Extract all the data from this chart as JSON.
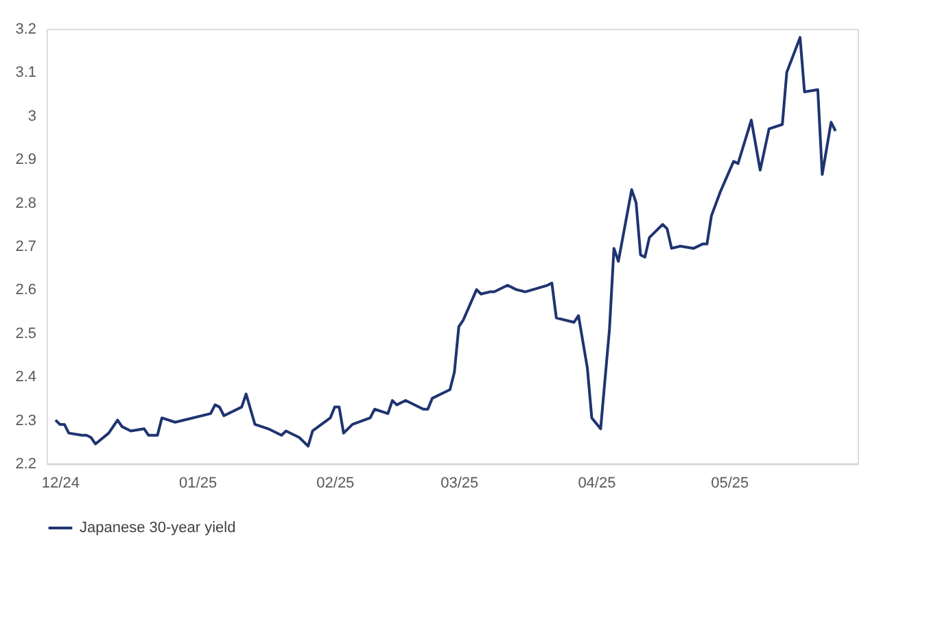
{
  "chart_data": {
    "type": "line",
    "x": [
      "2024-11-30",
      "2024-12-01",
      "2024-12-02",
      "2024-12-03",
      "2024-12-06",
      "2024-12-07",
      "2024-12-08",
      "2024-12-09",
      "2024-12-12",
      "2024-12-14",
      "2024-12-15",
      "2024-12-17",
      "2024-12-20",
      "2024-12-21",
      "2024-12-23",
      "2024-12-24",
      "2024-12-27",
      "2025-01-04",
      "2025-01-05",
      "2025-01-06",
      "2025-01-07",
      "2025-01-11",
      "2025-01-12",
      "2025-01-14",
      "2025-01-17",
      "2025-01-20",
      "2025-01-21",
      "2025-01-24",
      "2025-01-26",
      "2025-01-27",
      "2025-01-29",
      "2025-01-31",
      "2025-02-01",
      "2025-02-02",
      "2025-02-03",
      "2025-02-05",
      "2025-02-09",
      "2025-02-10",
      "2025-02-13",
      "2025-02-14",
      "2025-02-15",
      "2025-02-17",
      "2025-02-21",
      "2025-02-22",
      "2025-02-23",
      "2025-02-25",
      "2025-02-27",
      "2025-02-28",
      "2025-03-01",
      "2025-03-02",
      "2025-03-05",
      "2025-03-06",
      "2025-03-08",
      "2025-03-09",
      "2025-03-12",
      "2025-03-14",
      "2025-03-16",
      "2025-03-21",
      "2025-03-22",
      "2025-03-23",
      "2025-03-27",
      "2025-03-28",
      "2025-03-30",
      "2025-03-31",
      "2025-04-02",
      "2025-04-04",
      "2025-04-05",
      "2025-04-06",
      "2025-04-07",
      "2025-04-09",
      "2025-04-10",
      "2025-04-11",
      "2025-04-12",
      "2025-04-13",
      "2025-04-16",
      "2025-04-17",
      "2025-04-18",
      "2025-04-20",
      "2025-04-23",
      "2025-04-25",
      "2025-04-26",
      "2025-04-27",
      "2025-04-29",
      "2025-05-02",
      "2025-05-03",
      "2025-05-06",
      "2025-05-08",
      "2025-05-10",
      "2025-05-13",
      "2025-05-14",
      "2025-05-17",
      "2025-05-18",
      "2025-05-21",
      "2025-05-22",
      "2025-05-24",
      "2025-05-25"
    ],
    "series": [
      {
        "name": "Japanese 30-year yield",
        "color": "#1f3470",
        "values": [
          2.3,
          2.29,
          2.29,
          2.27,
          2.265,
          2.265,
          2.26,
          2.245,
          2.27,
          2.3,
          2.285,
          2.275,
          2.28,
          2.265,
          2.265,
          2.305,
          2.295,
          2.315,
          2.335,
          2.33,
          2.31,
          2.33,
          2.36,
          2.29,
          2.28,
          2.265,
          2.275,
          2.26,
          2.24,
          2.275,
          2.29,
          2.305,
          2.33,
          2.33,
          2.27,
          2.29,
          2.305,
          2.325,
          2.315,
          2.345,
          2.335,
          2.345,
          2.325,
          2.325,
          2.35,
          2.36,
          2.37,
          2.41,
          2.515,
          2.53,
          2.6,
          2.59,
          2.595,
          2.595,
          2.61,
          2.6,
          2.595,
          2.61,
          2.615,
          2.535,
          2.525,
          2.54,
          2.42,
          2.305,
          2.28,
          2.51,
          2.695,
          2.665,
          2.72,
          2.83,
          2.8,
          2.68,
          2.675,
          2.72,
          2.75,
          2.74,
          2.695,
          2.7,
          2.695,
          2.705,
          2.705,
          2.77,
          2.825,
          2.895,
          2.89,
          2.99,
          2.875,
          2.97,
          2.98,
          3.1,
          3.18,
          3.055,
          3.06,
          2.865,
          2.985,
          2.965
        ]
      }
    ],
    "xlim": [
      "2024-11-28",
      "2025-05-30"
    ],
    "xticks": [
      {
        "value": "2024-12-01",
        "label": "12/24"
      },
      {
        "value": "2025-01-01",
        "label": "01/25"
      },
      {
        "value": "2025-02-01",
        "label": "02/25"
      },
      {
        "value": "2025-03-01",
        "label": "03/25"
      },
      {
        "value": "2025-04-01",
        "label": "04/25"
      },
      {
        "value": "2025-05-01",
        "label": "05/25"
      }
    ],
    "ylim": [
      2.2,
      3.2
    ],
    "yticks": [
      2.2,
      2.3,
      2.4,
      2.5,
      2.6,
      2.7,
      2.8,
      2.9,
      3,
      3.1,
      3.2
    ],
    "grid": false,
    "legend": "bottom",
    "line_style": "solid",
    "marker": "none"
  }
}
